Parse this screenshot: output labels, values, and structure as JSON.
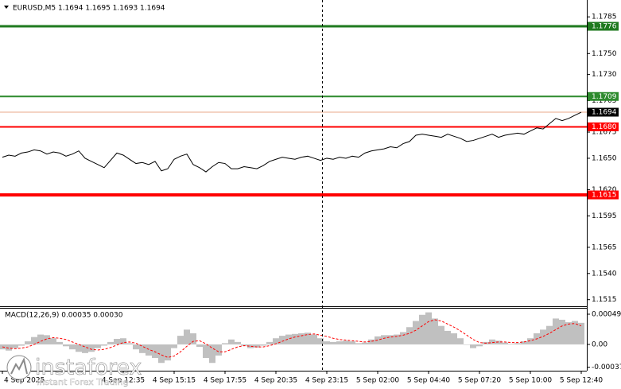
{
  "chart_data": [
    {
      "type": "line",
      "title": "EURUSD,M5  1.1694 1.1695 1.1693 1.1694",
      "color": "#000000",
      "values": [
        1.1651,
        1.1653,
        1.1652,
        1.1655,
        1.1656,
        1.1658,
        1.1657,
        1.1654,
        1.1656,
        1.1655,
        1.1652,
        1.1654,
        1.1657,
        1.165,
        1.1647,
        1.1644,
        1.1641,
        1.1648,
        1.1655,
        1.1653,
        1.1649,
        1.1645,
        1.1646,
        1.1644,
        1.1647,
        1.1638,
        1.164,
        1.1649,
        1.1652,
        1.1654,
        1.1644,
        1.1641,
        1.1637,
        1.1642,
        1.1646,
        1.1645,
        1.164,
        1.164,
        1.1642,
        1.1641,
        1.164,
        1.1643,
        1.1647,
        1.1649,
        1.1651,
        1.165,
        1.1649,
        1.1651,
        1.1652,
        1.165,
        1.1648,
        1.165,
        1.1649,
        1.1651,
        1.165,
        1.1652,
        1.1651,
        1.1655,
        1.1657,
        1.1658,
        1.1659,
        1.1661,
        1.166,
        1.1664,
        1.1666,
        1.1672,
        1.1673,
        1.1672,
        1.1671,
        1.167,
        1.1673,
        1.1671,
        1.1669,
        1.1666,
        1.1667,
        1.1669,
        1.1671,
        1.1673,
        1.167,
        1.1672,
        1.1673,
        1.1674,
        1.1673,
        1.1676,
        1.1679,
        1.1678,
        1.1683,
        1.1688,
        1.1686,
        1.1688,
        1.1691,
        1.1694
      ],
      "xlim": [
        -0.375,
        91.875
      ],
      "xticks": [
        {
          "value": 0,
          "label": "4 Sep 2025"
        },
        {
          "value": 19,
          "label": "4 Sep 12:35"
        },
        {
          "value": 27,
          "label": "4 Sep 15:15"
        },
        {
          "value": 35,
          "label": "4 Sep 17:55"
        },
        {
          "value": 43,
          "label": "4 Sep 20:35"
        },
        {
          "value": 51,
          "label": "4 Sep 23:15"
        },
        {
          "value": 59,
          "label": "5 Sep 02:00"
        },
        {
          "value": 67,
          "label": "5 Sep 04:40"
        },
        {
          "value": 75,
          "label": "5 Sep 07:20"
        },
        {
          "value": 83,
          "label": "5 Sep 10:00"
        },
        {
          "value": 91,
          "label": "5 Sep 12:40"
        }
      ],
      "ylim": [
        1.15087,
        1.18011
      ],
      "yticks": [
        1.1785,
        {
          "value": 1.175,
          "label": "1.1750"
        },
        {
          "value": 1.173,
          "label": "1.1730"
        },
        1.1705,
        1.1675,
        {
          "value": 1.165,
          "label": "1.1650"
        },
        {
          "value": 1.162,
          "label": "1.1620"
        },
        1.1595,
        1.1565,
        {
          "value": 1.154,
          "label": "1.1540"
        },
        1.1515
      ],
      "levels": [
        {
          "value": 1.1776,
          "label": "1.1776",
          "color": "#1f7a1f"
        },
        {
          "value": 1.1709,
          "label": "1.1709",
          "color": "#2e8b2e"
        },
        {
          "value": 1.1694,
          "label": "1.1694",
          "color": "#e8a888",
          "tag_color": "#000000"
        },
        {
          "value": 1.168,
          "label": "1.1680",
          "color": "#ff0000"
        },
        {
          "value": 1.1615,
          "label": "1.1615",
          "color": "#ff0000"
        }
      ]
    },
    {
      "type": "macd",
      "title": "MACD(12,26,9) 0.00035 0.00030",
      "ylim": [
        -0.000426,
        0.00058
      ],
      "yticks": [
        0.00049,
        {
          "value": 0,
          "label": "0.00"
        },
        -0.00037
      ],
      "series": [
        {
          "type": "bar",
          "color": "#c0c0c0",
          "values": [
            -8e-05,
            -0.0001,
            -6e-05,
            -2e-05,
            5e-05,
            0.00012,
            0.00016,
            0.00015,
            0.0001,
            4e-05,
            -3e-05,
            -8e-05,
            -0.00012,
            -0.00014,
            -0.00012,
            -6e-05,
            -2e-05,
            4e-05,
            9e-05,
            0.0001,
            2e-05,
            -8e-05,
            -0.00014,
            -0.00018,
            -0.00022,
            -0.0003,
            -0.00026,
            -6e-05,
            0.00014,
            0.00024,
            0.00018,
            -4e-05,
            -0.00022,
            -0.0003,
            -0.00018,
            2e-05,
            8e-05,
            4e-05,
            -2e-05,
            -6e-05,
            -5e-05,
            -2e-05,
            4e-05,
            0.0001,
            0.00014,
            0.00016,
            0.00017,
            0.00018,
            0.00019,
            0.00016,
            0.0001,
            5e-05,
            4e-05,
            5e-05,
            6e-05,
            5e-05,
            2e-05,
            3e-05,
            8e-05,
            0.00013,
            0.00015,
            0.00015,
            0.00016,
            0.0002,
            0.00028,
            0.00038,
            0.00048,
            0.00052,
            0.00042,
            0.0003,
            0.00022,
            0.00018,
            0.0001,
            0,
            -6e-05,
            -3e-05,
            4e-05,
            8e-05,
            6e-05,
            3e-05,
            1e-05,
            2e-05,
            5e-05,
            0.0001,
            0.00018,
            0.00024,
            0.0003,
            0.00042,
            0.0004,
            0.00036,
            0.00038,
            0.00035
          ]
        },
        {
          "type": "line",
          "color": "#ff0000",
          "values": [
            -4e-05,
            -6e-05,
            -7e-05,
            -6e-05,
            -4e-05,
            0,
            5e-05,
            9e-05,
            0.00011,
            0.0001,
            8e-05,
            4e-05,
            0,
            -4e-05,
            -8e-05,
            -9e-05,
            -8e-05,
            -5e-05,
            -1e-05,
            3e-05,
            4e-05,
            2e-05,
            -3e-05,
            -8e-05,
            -0.00012,
            -0.00017,
            -0.00021,
            -0.00019,
            -0.00012,
            -3e-05,
            5e-05,
            6e-05,
            1e-05,
            -6e-05,
            -0.00012,
            -0.00012,
            -8e-05,
            -4e-05,
            -2e-05,
            -3e-05,
            -4e-05,
            -4e-05,
            -2e-05,
            1e-05,
            5e-05,
            9e-05,
            0.00012,
            0.00014,
            0.00016,
            0.00017,
            0.00015,
            0.00013,
            0.0001,
            8e-05,
            7e-05,
            6e-05,
            5e-05,
            4e-05,
            5e-05,
            7e-05,
            0.0001,
            0.00012,
            0.00013,
            0.00015,
            0.00018,
            0.00023,
            0.0003,
            0.00037,
            0.0004,
            0.00038,
            0.00033,
            0.00028,
            0.00022,
            0.00015,
            8e-05,
            3e-05,
            2e-05,
            3e-05,
            4e-05,
            4e-05,
            3e-05,
            3e-05,
            4e-05,
            6e-05,
            9e-05,
            0.00013,
            0.00018,
            0.00024,
            0.0003,
            0.00033,
            0.00034,
            0.0003
          ]
        }
      ]
    }
  ],
  "watermark": {
    "name": "instaforex",
    "tagline": "Instant Forex Trading"
  }
}
